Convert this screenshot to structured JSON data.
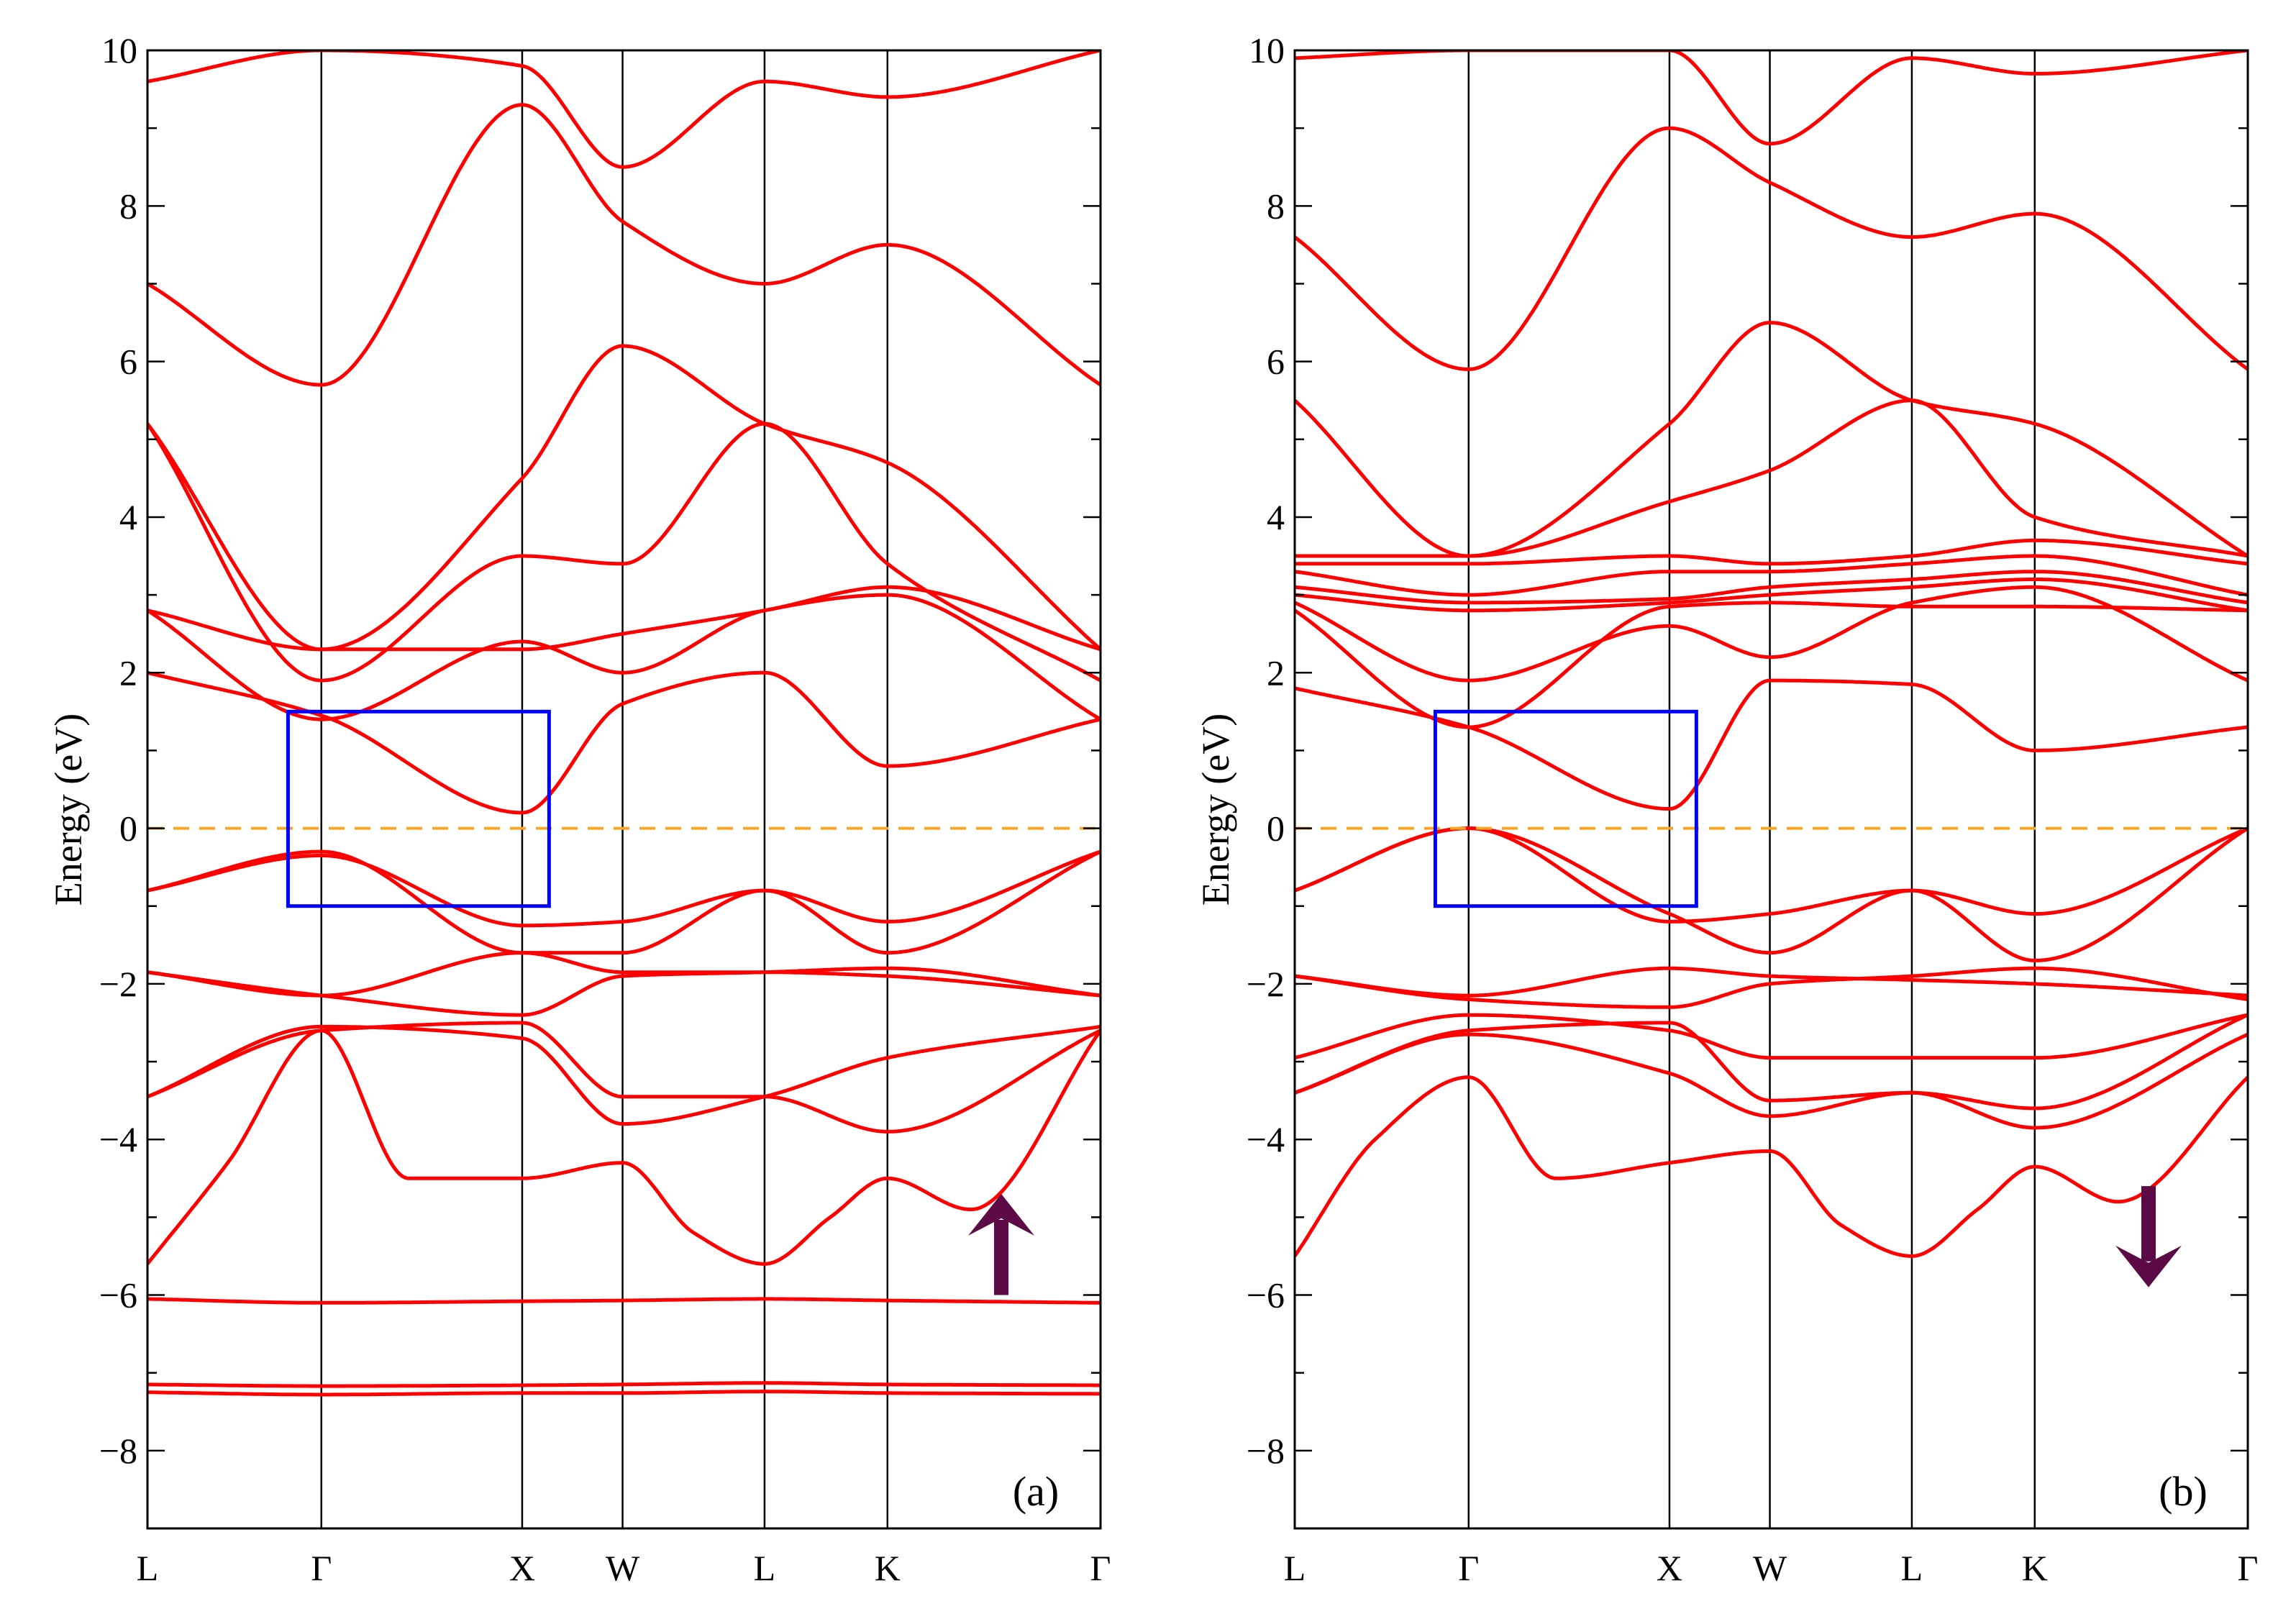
{
  "figure": {
    "type": "band-structure"
  },
  "chart_data": [
    {
      "type": "line",
      "panel_label": "(a)",
      "spin_symbol": "↑",
      "ylabel": "Energy (eV)",
      "xlabel": "",
      "ylim": [
        -9,
        10
      ],
      "yticks": [
        -8,
        -6,
        -4,
        -2,
        0,
        2,
        4,
        6,
        8,
        10
      ],
      "ytick_labels": [
        "−8",
        "−6",
        "−4",
        "−2",
        "0",
        "2",
        "4",
        "6",
        "8",
        "10"
      ],
      "kpoints": [
        {
          "label": "L",
          "x": 0
        },
        {
          "label": "Γ",
          "x": 0.866
        },
        {
          "label": "X",
          "x": 1.866
        },
        {
          "label": "W",
          "x": 2.366
        },
        {
          "label": "L",
          "x": 3.073
        },
        {
          "label": "K",
          "x": 3.685
        },
        {
          "label": "Γ",
          "x": 4.746
        }
      ],
      "fermi_level": 0,
      "highlight_box": {
        "x0": 0.7,
        "x1": 2.0,
        "y0": -1.0,
        "y1": 1.5
      },
      "colors": {
        "bands": "#ff0000",
        "fermi": "#f5a623",
        "box": "#0000ff",
        "arrow": "#5c0a45"
      },
      "series": [
        {
          "name": "b1",
          "x": [
            0,
            0.866,
            1.866,
            2.366,
            3.073,
            3.685,
            4.746
          ],
          "y": [
            -7.25,
            -7.28,
            -7.26,
            -7.26,
            -7.24,
            -7.26,
            -7.27
          ]
        },
        {
          "name": "b2",
          "x": [
            0,
            0.866,
            1.866,
            2.366,
            3.073,
            3.685,
            4.746
          ],
          "y": [
            -7.15,
            -7.17,
            -7.16,
            -7.15,
            -7.13,
            -7.15,
            -7.16
          ]
        },
        {
          "name": "b3",
          "x": [
            0,
            0.866,
            1.866,
            2.366,
            3.073,
            3.685,
            4.746
          ],
          "y": [
            -6.05,
            -6.1,
            -6.08,
            -6.07,
            -6.05,
            -6.07,
            -6.1
          ]
        },
        {
          "name": "b4",
          "x": [
            0,
            0.4,
            0.866,
            1.3,
            1.866,
            2.366,
            2.72,
            3.073,
            3.4,
            3.685,
            4.1,
            4.746
          ],
          "y": [
            -5.6,
            -4.3,
            -2.6,
            -4.5,
            -4.5,
            -4.3,
            -5.2,
            -5.6,
            -5.0,
            -4.5,
            -4.9,
            -2.6
          ]
        },
        {
          "name": "b5",
          "x": [
            0,
            0.866,
            1.866,
            2.366,
            3.073,
            3.685,
            4.746
          ],
          "y": [
            -3.45,
            -2.6,
            -2.5,
            -3.45,
            -3.45,
            -3.9,
            -2.6
          ]
        },
        {
          "name": "b6",
          "x": [
            0,
            0.866,
            1.866,
            2.366,
            3.073,
            3.685,
            4.746
          ],
          "y": [
            -3.45,
            -2.55,
            -2.7,
            -3.8,
            -3.45,
            -2.95,
            -2.55
          ]
        },
        {
          "name": "b7",
          "x": [
            0,
            0.866,
            1.866,
            2.366,
            3.073,
            3.685,
            4.746
          ],
          "y": [
            -1.85,
            -2.15,
            -2.4,
            -1.9,
            -1.85,
            -1.8,
            -2.15
          ]
        },
        {
          "name": "b8",
          "x": [
            0,
            0.866,
            1.866,
            2.366,
            3.073,
            3.685,
            4.746
          ],
          "y": [
            -1.85,
            -2.15,
            -1.6,
            -1.85,
            -1.85,
            -1.9,
            -2.15
          ]
        },
        {
          "name": "b9",
          "x": [
            0,
            0.866,
            1.866,
            2.366,
            3.073,
            3.685,
            4.746
          ],
          "y": [
            -0.8,
            -0.3,
            -1.6,
            -1.6,
            -0.8,
            -1.6,
            -0.3
          ]
        },
        {
          "name": "b10",
          "x": [
            0,
            0.866,
            1.866,
            2.366,
            3.073,
            3.685,
            4.746
          ],
          "y": [
            -0.8,
            -0.35,
            -1.25,
            -1.2,
            -0.8,
            -1.2,
            -0.3
          ]
        },
        {
          "name": "b11",
          "x": [
            0,
            0.866,
            1.866,
            2.366,
            3.073,
            3.685,
            4.746
          ],
          "y": [
            2.0,
            1.45,
            0.2,
            1.6,
            2.0,
            0.8,
            1.4
          ]
        },
        {
          "name": "b12",
          "x": [
            0,
            0.866,
            1.866,
            2.366,
            3.073,
            3.685,
            4.746
          ],
          "y": [
            2.8,
            1.4,
            2.4,
            2.0,
            2.8,
            3.0,
            1.4
          ]
        },
        {
          "name": "b13",
          "x": [
            0,
            0.866,
            1.866,
            2.366,
            3.073,
            3.685,
            4.746
          ],
          "y": [
            2.8,
            2.3,
            2.3,
            2.5,
            2.8,
            3.1,
            2.3
          ]
        },
        {
          "name": "b14",
          "x": [
            0,
            0.866,
            1.866,
            2.366,
            3.073,
            3.685,
            4.746
          ],
          "y": [
            5.2,
            1.9,
            3.5,
            3.4,
            5.2,
            3.4,
            1.9
          ]
        },
        {
          "name": "b15",
          "x": [
            0,
            0.866,
            1.866,
            2.366,
            3.073,
            3.685,
            4.746
          ],
          "y": [
            5.2,
            2.3,
            4.5,
            6.2,
            5.2,
            4.7,
            2.3
          ]
        },
        {
          "name": "b16",
          "x": [
            0,
            0.866,
            1.866,
            2.366,
            3.073,
            3.685,
            4.746
          ],
          "y": [
            7.0,
            5.7,
            9.3,
            7.8,
            7.0,
            7.5,
            5.7
          ]
        },
        {
          "name": "b17",
          "x": [
            0,
            0.866,
            1.866,
            2.366,
            3.073,
            3.685,
            4.746
          ],
          "y": [
            9.6,
            10.0,
            9.8,
            8.5,
            9.6,
            9.4,
            10.0
          ]
        }
      ]
    },
    {
      "type": "line",
      "panel_label": "(b)",
      "spin_symbol": "↓",
      "ylabel": "Energy (eV)",
      "xlabel": "",
      "ylim": [
        -9,
        10
      ],
      "yticks": [
        -8,
        -6,
        -4,
        -2,
        0,
        2,
        4,
        6,
        8,
        10
      ],
      "ytick_labels": [
        "−8",
        "−6",
        "−4",
        "−2",
        "0",
        "2",
        "4",
        "6",
        "8",
        "10"
      ],
      "kpoints": [
        {
          "label": "L",
          "x": 0
        },
        {
          "label": "Γ",
          "x": 0.866
        },
        {
          "label": "X",
          "x": 1.866
        },
        {
          "label": "W",
          "x": 2.366
        },
        {
          "label": "L",
          "x": 3.073
        },
        {
          "label": "K",
          "x": 3.685
        },
        {
          "label": "Γ",
          "x": 4.746
        }
      ],
      "fermi_level": 0,
      "highlight_box": {
        "x0": 0.7,
        "x1": 2.0,
        "y0": -1.0,
        "y1": 1.5
      },
      "colors": {
        "bands": "#ff0000",
        "fermi": "#f5a623",
        "box": "#0000ff",
        "arrow": "#5c0a45"
      },
      "series": [
        {
          "name": "b1",
          "x": [
            0,
            0.4,
            0.866,
            1.3,
            1.866,
            2.366,
            2.72,
            3.073,
            3.4,
            3.685,
            4.1,
            4.746
          ],
          "y": [
            -5.5,
            -4.0,
            -3.2,
            -4.5,
            -4.3,
            -4.15,
            -5.1,
            -5.5,
            -4.9,
            -4.35,
            -4.8,
            -3.2
          ]
        },
        {
          "name": "b2",
          "x": [
            0,
            0.866,
            1.866,
            2.366,
            3.073,
            3.685,
            4.746
          ],
          "y": [
            -3.4,
            -2.65,
            -3.15,
            -3.7,
            -3.4,
            -3.85,
            -2.65
          ]
        },
        {
          "name": "b3",
          "x": [
            0,
            0.866,
            1.866,
            2.366,
            3.073,
            3.685,
            4.746
          ],
          "y": [
            -3.4,
            -2.6,
            -2.5,
            -3.5,
            -3.4,
            -3.6,
            -2.4
          ]
        },
        {
          "name": "b4",
          "x": [
            0,
            0.866,
            1.866,
            2.366,
            3.073,
            3.685,
            4.746
          ],
          "y": [
            -2.95,
            -2.4,
            -2.6,
            -2.95,
            -2.95,
            -2.95,
            -2.4
          ]
        },
        {
          "name": "b5",
          "x": [
            0,
            0.866,
            1.866,
            2.366,
            3.073,
            3.685,
            4.746
          ],
          "y": [
            -1.9,
            -2.2,
            -2.3,
            -2.0,
            -1.9,
            -1.8,
            -2.2
          ]
        },
        {
          "name": "b6",
          "x": [
            0,
            0.866,
            1.866,
            2.366,
            3.073,
            3.685,
            4.746
          ],
          "y": [
            -1.9,
            -2.15,
            -1.8,
            -1.9,
            -1.95,
            -2.0,
            -2.15
          ]
        },
        {
          "name": "b7",
          "x": [
            0,
            0.866,
            1.866,
            2.366,
            3.073,
            3.685,
            4.746
          ],
          "y": [
            -0.8,
            0.0,
            -1.1,
            -1.6,
            -0.8,
            -1.7,
            0.0
          ]
        },
        {
          "name": "b8",
          "x": [
            0,
            0.866,
            1.866,
            2.366,
            3.073,
            3.685,
            4.746
          ],
          "y": [
            -0.8,
            0.0,
            -1.2,
            -1.1,
            -0.8,
            -1.1,
            0.0
          ]
        },
        {
          "name": "b9",
          "x": [
            0,
            0.866,
            1.866,
            2.366,
            3.073,
            3.685,
            4.746
          ],
          "y": [
            1.8,
            1.3,
            0.25,
            1.9,
            1.85,
            1.0,
            1.3
          ]
        },
        {
          "name": "b10",
          "x": [
            0,
            0.866,
            1.866,
            2.366,
            3.073,
            3.685,
            4.746
          ],
          "y": [
            2.8,
            1.3,
            2.85,
            2.9,
            2.85,
            2.85,
            2.8
          ]
        },
        {
          "name": "b11",
          "x": [
            0,
            0.866,
            1.866,
            2.366,
            3.073,
            3.685,
            4.746
          ],
          "y": [
            2.9,
            1.9,
            2.6,
            2.2,
            2.9,
            3.1,
            1.9
          ]
        },
        {
          "name": "b12",
          "x": [
            0,
            0.866,
            1.866,
            2.366,
            3.073,
            3.685,
            4.746
          ],
          "y": [
            3.0,
            2.8,
            2.9,
            3.0,
            3.1,
            3.2,
            2.8
          ]
        },
        {
          "name": "b13",
          "x": [
            0,
            0.866,
            1.866,
            2.366,
            3.073,
            3.685,
            4.746
          ],
          "y": [
            3.1,
            2.9,
            2.95,
            3.1,
            3.2,
            3.3,
            2.9
          ]
        },
        {
          "name": "b14",
          "x": [
            0,
            0.866,
            1.866,
            2.366,
            3.073,
            3.685,
            4.746
          ],
          "y": [
            3.3,
            3.0,
            3.3,
            3.3,
            3.4,
            3.5,
            3.0
          ]
        },
        {
          "name": "b15",
          "x": [
            0,
            0.866,
            1.866,
            2.366,
            3.073,
            3.685,
            4.746
          ],
          "y": [
            3.4,
            3.4,
            3.5,
            3.4,
            3.5,
            3.7,
            3.4
          ]
        },
        {
          "name": "b16",
          "x": [
            0,
            0.866,
            1.866,
            2.366,
            3.073,
            3.685,
            4.746
          ],
          "y": [
            3.5,
            3.5,
            4.2,
            4.6,
            5.5,
            4.0,
            3.5
          ]
        },
        {
          "name": "b17",
          "x": [
            0,
            0.866,
            1.866,
            2.366,
            3.073,
            3.685,
            4.746
          ],
          "y": [
            5.5,
            3.5,
            5.2,
            6.5,
            5.5,
            5.2,
            3.5
          ]
        },
        {
          "name": "b18",
          "x": [
            0,
            0.866,
            1.866,
            2.366,
            3.073,
            3.685,
            4.746
          ],
          "y": [
            7.6,
            5.9,
            9.0,
            8.3,
            7.6,
            7.9,
            5.9
          ]
        },
        {
          "name": "b19",
          "x": [
            0,
            0.866,
            1.866,
            2.366,
            3.073,
            3.685,
            4.746
          ],
          "y": [
            9.9,
            10.0,
            10.0,
            8.8,
            9.9,
            9.7,
            10.0
          ]
        }
      ]
    }
  ]
}
